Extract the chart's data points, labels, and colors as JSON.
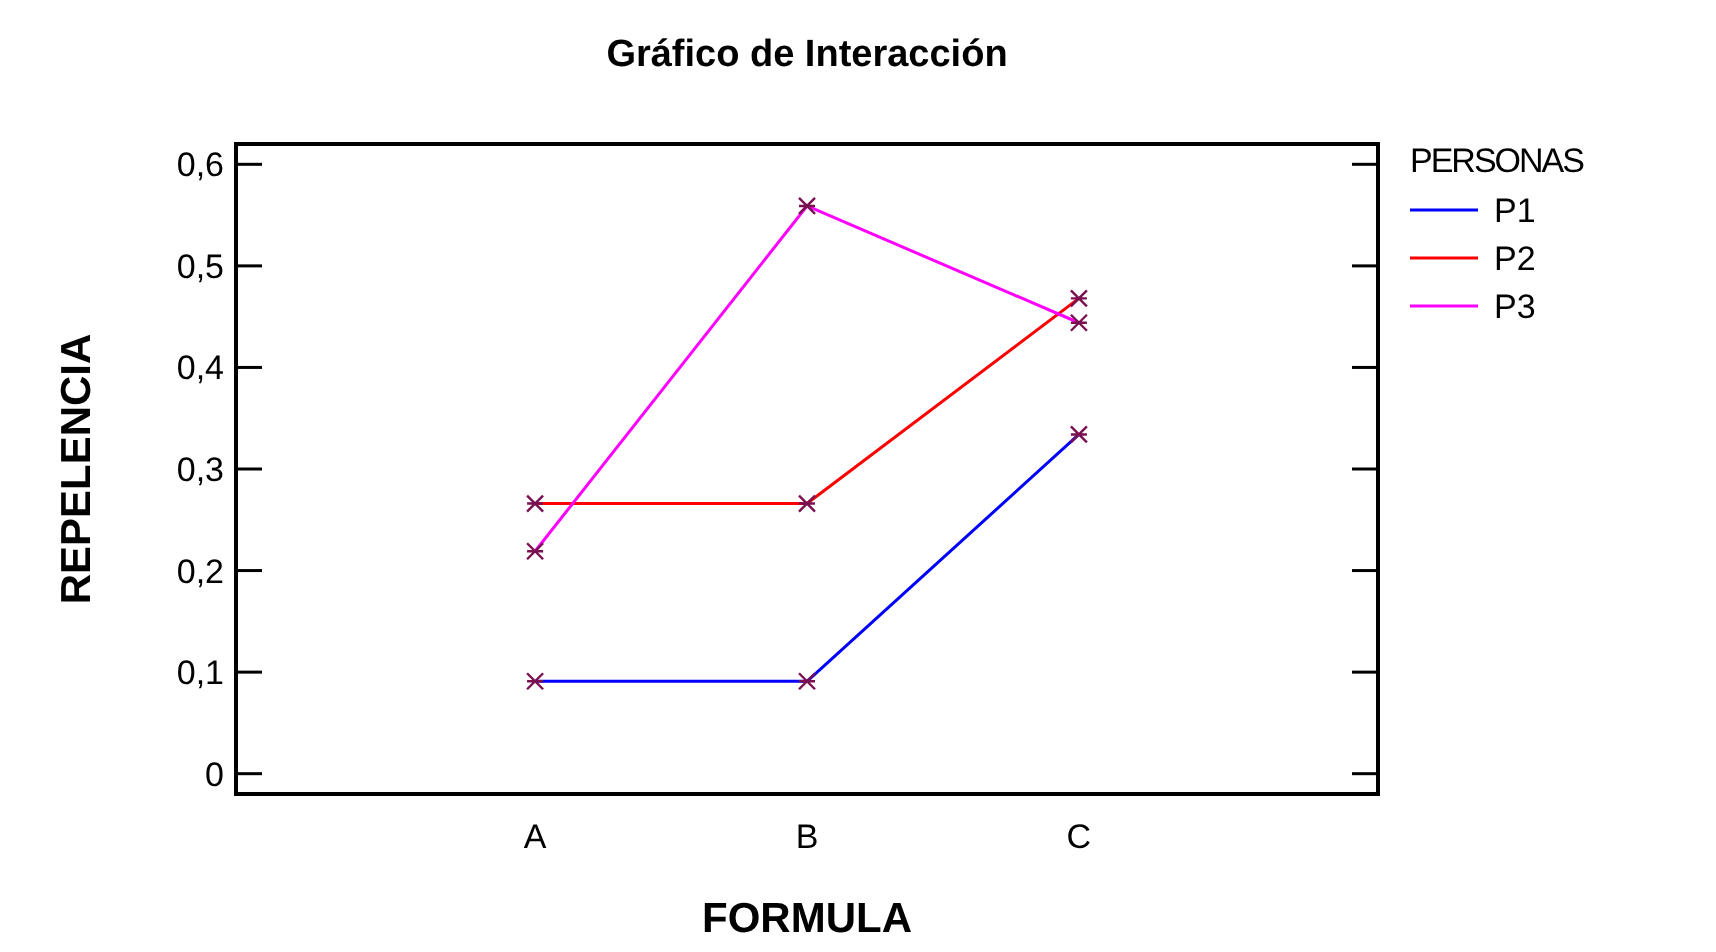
{
  "chart_data": {
    "type": "line",
    "title": "Gráfico de Interacción",
    "xlabel": "FORMULA",
    "ylabel": "REPELENCIA",
    "legend_title": "PERSONAS",
    "categories": [
      "A",
      "B",
      "C"
    ],
    "series": [
      {
        "name": "P1",
        "color": "#0000ff",
        "values": [
          0.091,
          0.091,
          0.334
        ]
      },
      {
        "name": "P2",
        "color": "#ff0000",
        "values": [
          0.266,
          0.266,
          0.468
        ]
      },
      {
        "name": "P3",
        "color": "#ff00ff",
        "values": [
          0.219,
          0.559,
          0.444
        ]
      }
    ],
    "ylim": [
      -0.02,
      0.62
    ],
    "yticks": [
      {
        "value": 0,
        "label": "0"
      },
      {
        "value": 0.1,
        "label": "0,1"
      },
      {
        "value": 0.2,
        "label": "0,2"
      },
      {
        "value": 0.3,
        "label": "0,3"
      },
      {
        "value": 0.4,
        "label": "0,4"
      },
      {
        "value": 0.5,
        "label": "0,5"
      },
      {
        "value": 0.6,
        "label": "0,6"
      }
    ],
    "grid": false,
    "legend": "top right",
    "marker": "cross",
    "line_style": "solid"
  }
}
